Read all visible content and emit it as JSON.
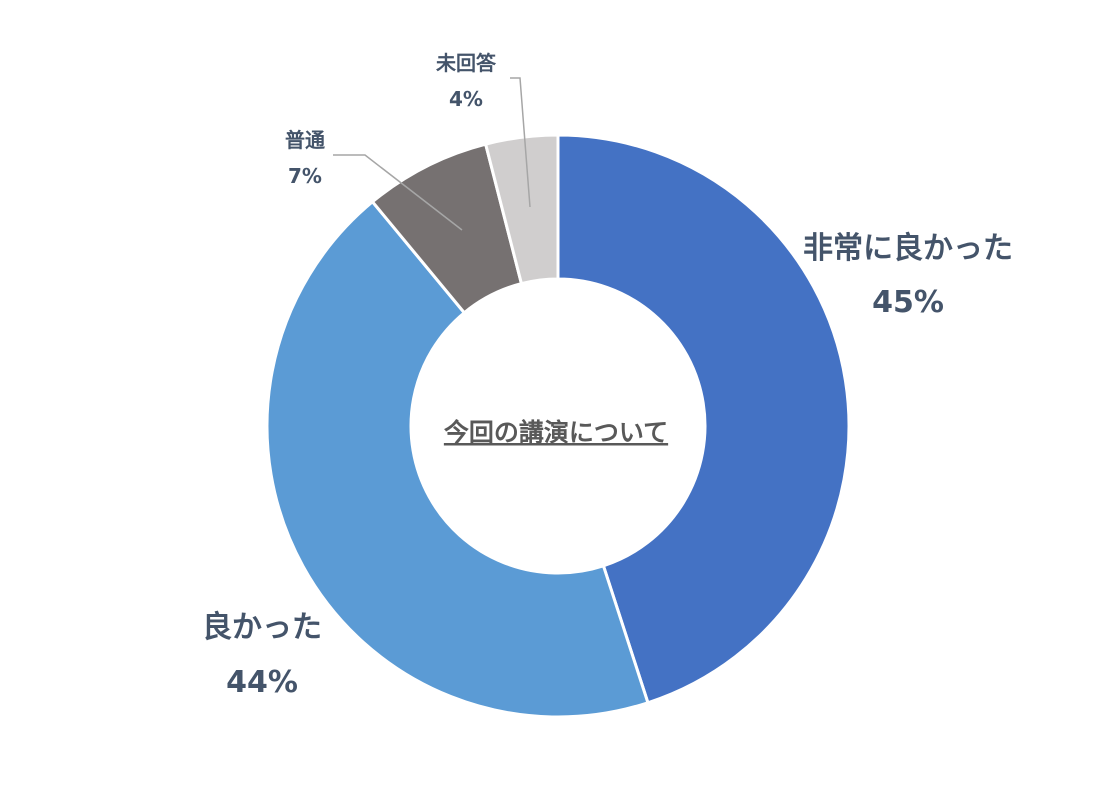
{
  "chart_data": {
    "type": "pie",
    "title": "今回の講演について",
    "categories": [
      "非常に良かった",
      "良かった",
      "普通",
      "未回答"
    ],
    "values": [
      45,
      44,
      7,
      4
    ],
    "data_labels": [
      "45%",
      "44%",
      "7%",
      "4%"
    ],
    "colors": [
      "#4472c4",
      "#5b9bd5",
      "#767171",
      "#d0cece"
    ],
    "legend": "none"
  }
}
